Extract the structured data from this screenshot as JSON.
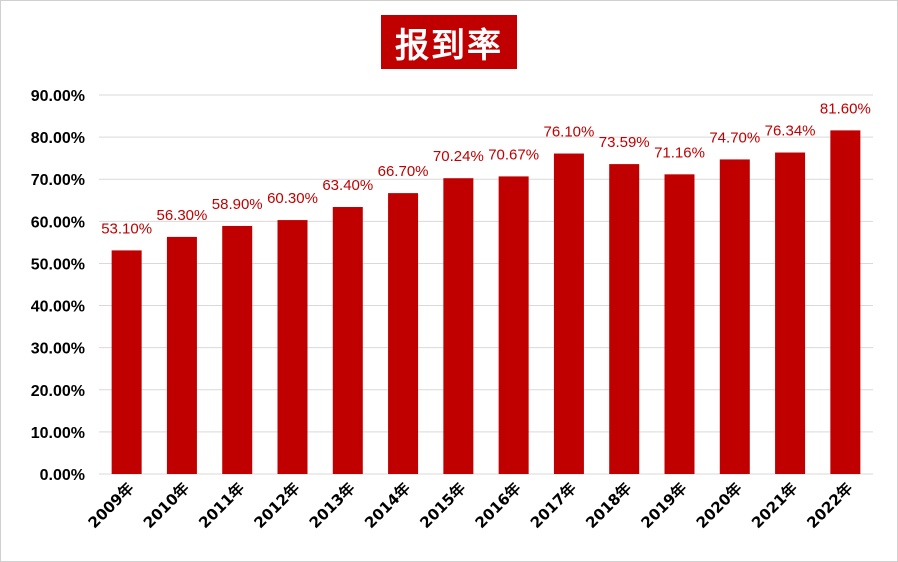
{
  "chart_data": {
    "type": "bar",
    "title": "报到率",
    "categories": [
      "2009年",
      "2010年",
      "2011年",
      "2012年",
      "2013年",
      "2014年",
      "2015年",
      "2016年",
      "2017年",
      "2018年",
      "2019年",
      "2020年",
      "2021年",
      "2022年"
    ],
    "values": [
      53.1,
      56.3,
      58.9,
      60.3,
      63.4,
      66.7,
      70.24,
      70.67,
      76.1,
      73.59,
      71.16,
      74.7,
      76.34,
      81.6
    ],
    "data_labels": [
      "53.10%",
      "56.30%",
      "58.90%",
      "60.30%",
      "63.40%",
      "66.70%",
      "70.24%",
      "70.67%",
      "76.10%",
      "73.59%",
      "71.16%",
      "74.70%",
      "76.34%",
      "81.60%"
    ],
    "y_ticks": [
      "0.00%",
      "10.00%",
      "20.00%",
      "30.00%",
      "40.00%",
      "50.00%",
      "60.00%",
      "70.00%",
      "80.00%",
      "90.00%"
    ],
    "ylim": [
      0,
      90
    ],
    "grid": true,
    "colors": {
      "bar": "#c00000",
      "label": "#c00000",
      "title_bg": "#c00000",
      "title_text": "#ffffff"
    }
  }
}
